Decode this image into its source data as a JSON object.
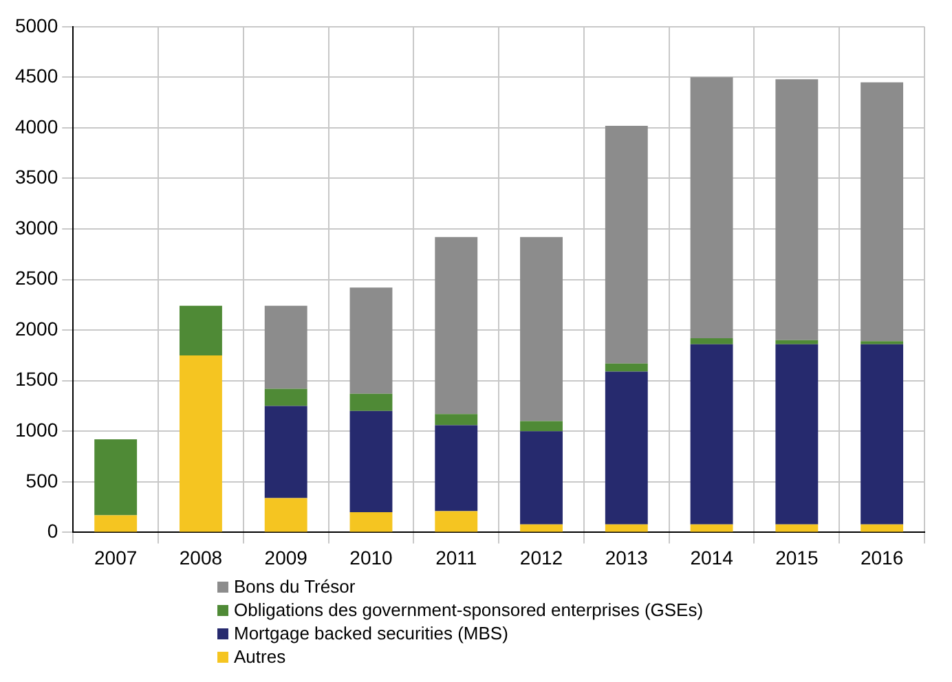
{
  "chart_data": {
    "type": "bar",
    "stacked": true,
    "categories": [
      "2007",
      "2008",
      "2009",
      "2010",
      "2011",
      "2012",
      "2013",
      "2014",
      "2015",
      "2016"
    ],
    "series": [
      {
        "name": "Autres",
        "color": "#f5c521",
        "values": [
          170,
          1750,
          340,
          200,
          210,
          80,
          80,
          80,
          80,
          80
        ]
      },
      {
        "name": "Mortgage backed securities (MBS)",
        "color": "#262a6e",
        "values": [
          0,
          0,
          910,
          1000,
          850,
          920,
          1510,
          1780,
          1780,
          1780
        ]
      },
      {
        "name": "Obligations des government-sponsored enterprises (GSEs)",
        "color": "#4f8a36",
        "values": [
          750,
          490,
          170,
          170,
          110,
          100,
          80,
          60,
          40,
          30
        ]
      },
      {
        "name": "Bons du Trésor",
        "color": "#8c8c8c",
        "values": [
          0,
          0,
          820,
          1050,
          1750,
          1820,
          2350,
          2580,
          2580,
          2560
        ]
      }
    ],
    "ylim": [
      0,
      5000
    ],
    "yticks": [
      0,
      500,
      1000,
      1500,
      2000,
      2500,
      3000,
      3500,
      4000,
      4500,
      5000
    ],
    "grid": true,
    "legend": "bottom"
  }
}
